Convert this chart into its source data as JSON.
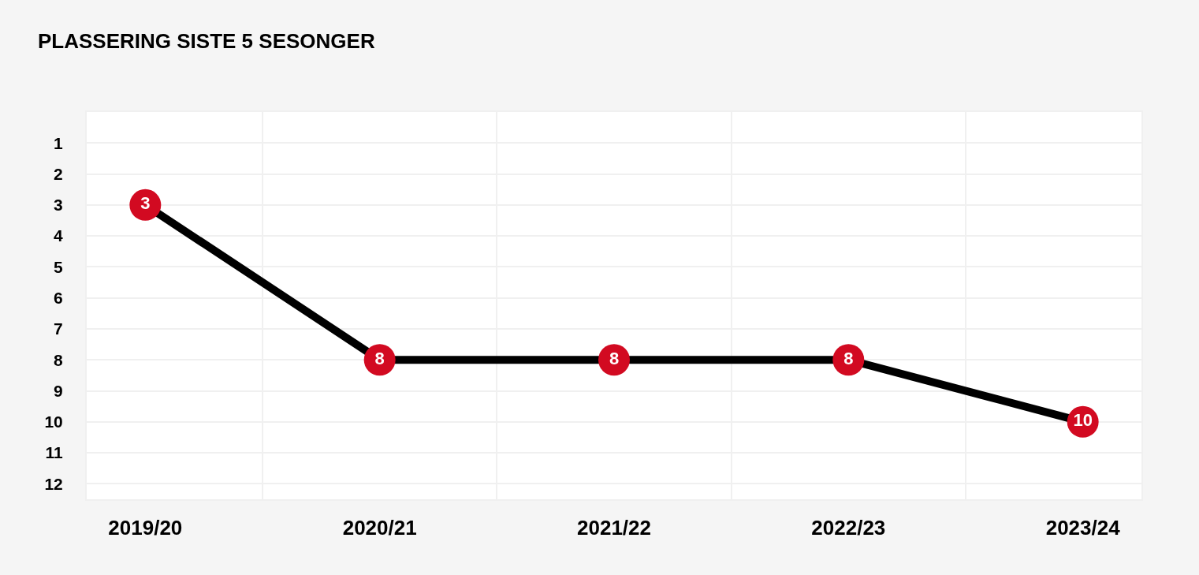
{
  "chart_data": {
    "type": "line",
    "title": "PLASSERING SISTE 5 SESONGER",
    "categories": [
      "2019/20",
      "2020/21",
      "2021/22",
      "2022/23",
      "2023/24"
    ],
    "series": [
      {
        "color": "#000000",
        "colors": [
          "#d20a21",
          "#d20a21",
          "#d20a21",
          "#d20a21",
          "#d20a21"
        ],
        "values": [
          3,
          8,
          8,
          8,
          10
        ]
      }
    ],
    "ylim": [
      12.5,
      0
    ],
    "yticks": [
      1,
      2,
      3,
      4,
      5,
      6,
      7,
      8,
      9,
      10,
      11,
      12
    ],
    "grid": true,
    "marker": "circle",
    "line_style": "solid",
    "data_labels": true
  }
}
